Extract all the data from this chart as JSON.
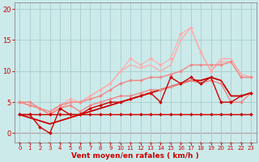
{
  "background_color": "#cceaea",
  "grid_color": "#aacccc",
  "xlabel": "Vent moyen/en rafales ( km/h )",
  "xlabel_color": "#cc0000",
  "tick_color": "#cc0000",
  "xlim": [
    -0.5,
    23.5
  ],
  "ylim": [
    -1.5,
    21
  ],
  "yticks": [
    0,
    5,
    10,
    15,
    20
  ],
  "xticks": [
    0,
    1,
    2,
    3,
    4,
    5,
    6,
    7,
    8,
    9,
    10,
    11,
    12,
    13,
    14,
    15,
    16,
    17,
    18,
    19,
    20,
    21,
    22,
    23
  ],
  "lines": [
    {
      "x": [
        0,
        1,
        2,
        3,
        4,
        5,
        6,
        7,
        8,
        9,
        10,
        11,
        12,
        13,
        14,
        15,
        16,
        17,
        18,
        19,
        20,
        21,
        22,
        23
      ],
      "y": [
        3,
        3,
        3,
        3,
        3,
        3,
        3,
        3,
        3,
        3,
        3,
        3,
        3,
        3,
        3,
        3,
        3,
        3,
        3,
        3,
        3,
        3,
        3,
        3
      ],
      "color": "#cc0000",
      "lw": 1.0,
      "marker": "D",
      "ms": 2.0,
      "zorder": 6
    },
    {
      "x": [
        0,
        1,
        2,
        3,
        4,
        5,
        6,
        7,
        8,
        9,
        10,
        11,
        12,
        13,
        14,
        15,
        16,
        17,
        18,
        19,
        20,
        21,
        22,
        23
      ],
      "y": [
        3,
        3,
        1,
        0,
        4,
        3,
        3,
        4,
        4.5,
        5,
        5,
        5.5,
        6,
        6.5,
        5,
        9,
        8,
        9,
        8,
        9,
        5,
        5,
        6,
        6.5
      ],
      "color": "#cc0000",
      "lw": 1.0,
      "marker": "D",
      "ms": 2.0,
      "zorder": 5
    },
    {
      "x": [
        0,
        1,
        2,
        3,
        4,
        5,
        6,
        7,
        8,
        9,
        10,
        11,
        12,
        13,
        14,
        15,
        16,
        17,
        18,
        19,
        20,
        21,
        22,
        23
      ],
      "y": [
        5,
        4.5,
        4,
        3.5,
        4.5,
        5,
        5,
        5.5,
        6,
        7,
        8,
        8.5,
        8.5,
        9,
        9,
        9.5,
        10,
        11,
        11,
        11,
        11,
        11.5,
        9,
        9
      ],
      "color": "#ee8888",
      "lw": 1.0,
      "marker": "D",
      "ms": 2.0,
      "zorder": 4
    },
    {
      "x": [
        0,
        1,
        2,
        3,
        4,
        5,
        6,
        7,
        8,
        9,
        10,
        11,
        12,
        13,
        14,
        15,
        16,
        17,
        18,
        19,
        20,
        21,
        22,
        23
      ],
      "y": [
        5,
        5,
        4,
        3,
        4,
        4.5,
        3.5,
        4.5,
        5,
        5.5,
        6,
        6,
        6.5,
        7,
        7,
        7.5,
        8,
        8.5,
        8,
        8.5,
        8,
        5,
        5,
        6.5
      ],
      "color": "#ee8888",
      "lw": 1.0,
      "marker": "D",
      "ms": 2.0,
      "zorder": 4
    },
    {
      "x": [
        0,
        1,
        2,
        3,
        4,
        5,
        6,
        7,
        8,
        9,
        10,
        11,
        12,
        13,
        14,
        15,
        16,
        17,
        18,
        19,
        20,
        21,
        22,
        23
      ],
      "y": [
        3,
        2.5,
        2,
        1.5,
        2,
        2.5,
        3,
        3.5,
        4,
        4.5,
        5,
        5.5,
        6,
        6.5,
        7,
        7.5,
        8,
        8.5,
        8.5,
        9,
        8.5,
        6,
        6,
        6.5
      ],
      "color": "#cc0000",
      "lw": 1.3,
      "marker": null,
      "ms": 0,
      "zorder": 3
    },
    {
      "x": [
        0,
        1,
        2,
        3,
        4,
        5,
        6,
        7,
        8,
        9,
        10,
        11,
        12,
        13,
        14,
        15,
        16,
        17,
        18,
        19,
        20,
        21,
        22,
        23
      ],
      "y": [
        5,
        5,
        4,
        3,
        4.5,
        5.5,
        5,
        6,
        7,
        8,
        10,
        12,
        11,
        12,
        11,
        12,
        16,
        17,
        13,
        10,
        11.5,
        11.5,
        9,
        9
      ],
      "color": "#ffaaaa",
      "lw": 0.8,
      "marker": "D",
      "ms": 2.0,
      "zorder": 3
    },
    {
      "x": [
        0,
        1,
        2,
        3,
        4,
        5,
        6,
        7,
        8,
        9,
        10,
        11,
        12,
        13,
        14,
        15,
        16,
        17,
        18,
        19,
        20,
        21,
        22,
        23
      ],
      "y": [
        5,
        4.5,
        4,
        3,
        4,
        5,
        5,
        6,
        7,
        8,
        10,
        11,
        10.5,
        11,
        10,
        11,
        15,
        17,
        13,
        10,
        12,
        12,
        9.5,
        9
      ],
      "color": "#ffaaaa",
      "lw": 1.0,
      "marker": null,
      "ms": 0,
      "zorder": 2
    }
  ],
  "arrow_color": "#cc3333",
  "arrow_chars": "←"
}
